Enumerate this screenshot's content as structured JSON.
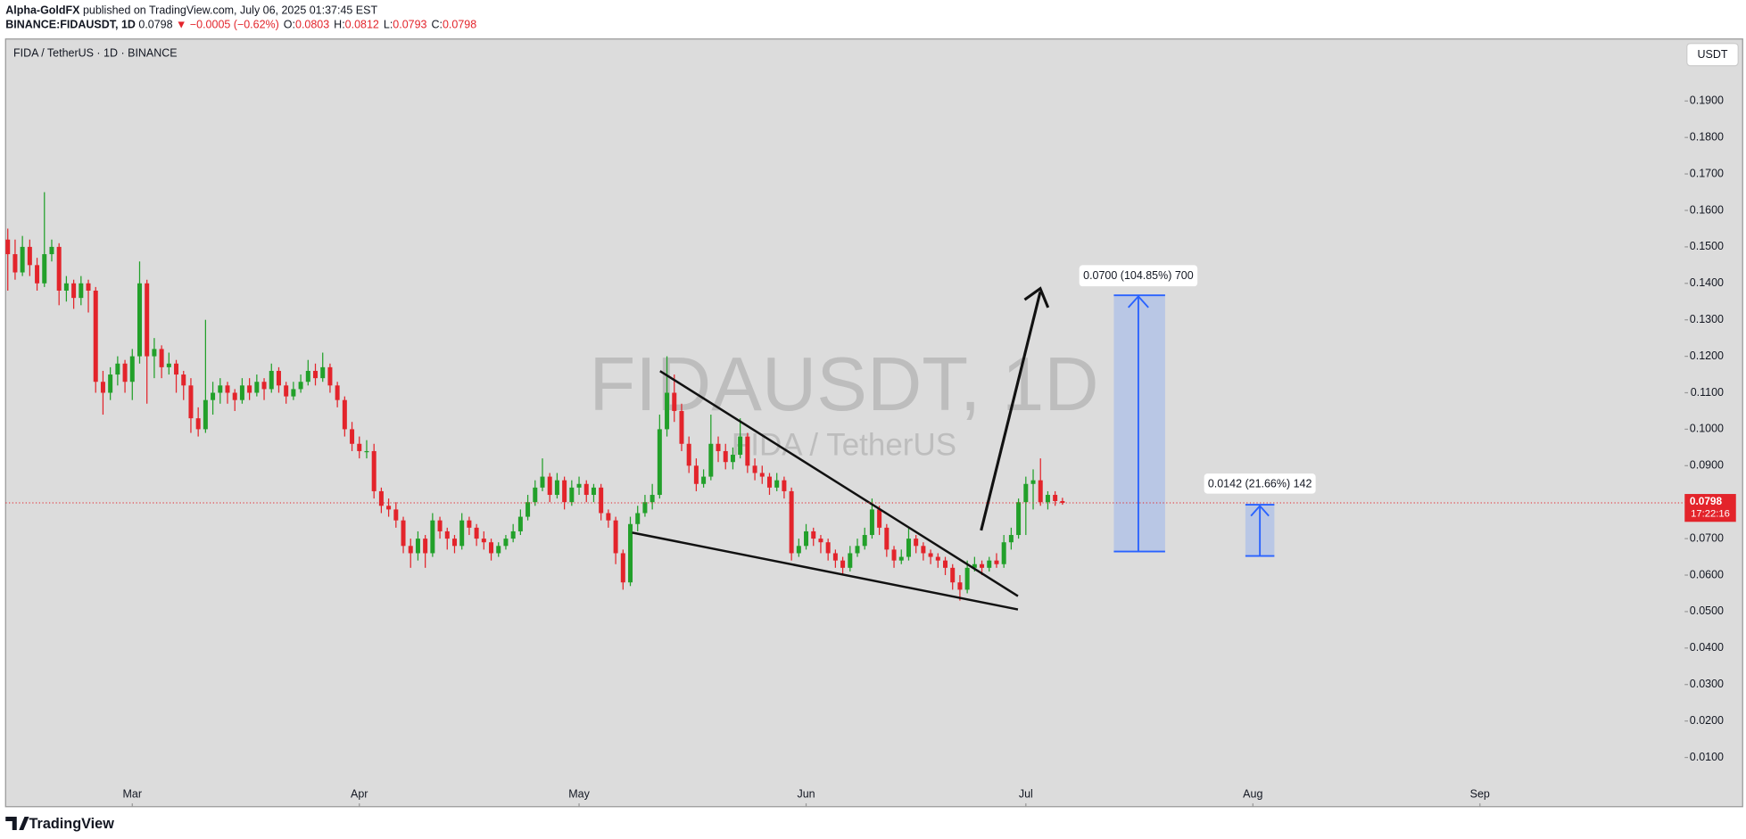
{
  "header": {
    "publisher": "Alpha-GoldFX",
    "published": "published on TradingView.com, July 06, 2025 01:37:45 EST",
    "symbol": "BINANCE:FIDAUSDT, 1D",
    "price": "0.0798",
    "change": "▼ −0.0005 (−0.62%)",
    "ohlc": [
      {
        "key": "O:",
        "text": "0.0803"
      },
      {
        "key": "H:",
        "text": "0.0812"
      },
      {
        "key": "L:",
        "text": "0.0793"
      },
      {
        "key": "C:",
        "text": "0.0798"
      }
    ]
  },
  "footer": {
    "logo": "TradingView"
  },
  "chart_data": {
    "type": "candlestick",
    "title": "FIDA / TetherUS · 1D · BINANCE",
    "currency": "USDT",
    "watermark": "FIDAUSDT, 1D",
    "watermark_subtitle": "FIDA / TetherUS",
    "up_color": "#22a02a",
    "down_color": "#e3242b",
    "last_price": 0.0798,
    "countdown": "17:22:16",
    "annotations": [
      "0.0700 (104.85%) 700",
      "0.0142 (21.66%) 142"
    ],
    "xlim": [
      -0.3,
      228.8
    ],
    "xticks": [
      {
        "value": 17,
        "label": "Mar"
      },
      {
        "value": 48,
        "label": "Apr"
      },
      {
        "value": 78,
        "label": "May"
      },
      {
        "value": 109,
        "label": "Jun"
      },
      {
        "value": 139,
        "label": "Jul"
      },
      {
        "value": 170,
        "label": "Aug"
      },
      {
        "value": 201,
        "label": "Sep"
      }
    ],
    "ylim": [
      -0.0035,
      0.207
    ],
    "yticks": [
      {
        "value": 0.01,
        "label": "0.0100"
      },
      {
        "value": 0.02,
        "label": "0.0200"
      },
      {
        "value": 0.03,
        "label": "0.0300"
      },
      {
        "value": 0.04,
        "label": "0.0400"
      },
      {
        "value": 0.05,
        "label": "0.0500"
      },
      {
        "value": 0.06,
        "label": "0.0600"
      },
      {
        "value": 0.07,
        "label": "0.0700"
      },
      {
        "value": 0.08,
        "label": "0.0800"
      },
      {
        "value": 0.09,
        "label": "0.0900"
      },
      {
        "value": 0.1,
        "label": "0.1000"
      },
      {
        "value": 0.11,
        "label": "0.1100"
      },
      {
        "value": 0.12,
        "label": "0.1200"
      },
      {
        "value": 0.13,
        "label": "0.1300"
      },
      {
        "value": 0.14,
        "label": "0.1400"
      },
      {
        "value": 0.15,
        "label": "0.1500"
      },
      {
        "value": 0.16,
        "label": "0.1600"
      },
      {
        "value": 0.17,
        "label": "0.1700"
      },
      {
        "value": 0.18,
        "label": "0.1800"
      },
      {
        "value": 0.19,
        "label": "0.1900"
      }
    ],
    "candles": [
      [
        0.152,
        0.155,
        0.138,
        0.148
      ],
      [
        0.148,
        0.152,
        0.141,
        0.143
      ],
      [
        0.143,
        0.153,
        0.142,
        0.15
      ],
      [
        0.15,
        0.152,
        0.142,
        0.145
      ],
      [
        0.145,
        0.147,
        0.138,
        0.14
      ],
      [
        0.14,
        0.165,
        0.139,
        0.148
      ],
      [
        0.148,
        0.152,
        0.146,
        0.15
      ],
      [
        0.15,
        0.151,
        0.134,
        0.138
      ],
      [
        0.138,
        0.142,
        0.135,
        0.14
      ],
      [
        0.14,
        0.141,
        0.133,
        0.136
      ],
      [
        0.136,
        0.142,
        0.134,
        0.14
      ],
      [
        0.14,
        0.141,
        0.132,
        0.138
      ],
      [
        0.138,
        0.139,
        0.11,
        0.113
      ],
      [
        0.113,
        0.116,
        0.104,
        0.11
      ],
      [
        0.11,
        0.117,
        0.108,
        0.115
      ],
      [
        0.115,
        0.12,
        0.112,
        0.118
      ],
      [
        0.118,
        0.119,
        0.11,
        0.113
      ],
      [
        0.113,
        0.122,
        0.108,
        0.12
      ],
      [
        0.12,
        0.146,
        0.118,
        0.14
      ],
      [
        0.14,
        0.141,
        0.107,
        0.12
      ],
      [
        0.12,
        0.125,
        0.114,
        0.122
      ],
      [
        0.122,
        0.123,
        0.114,
        0.117
      ],
      [
        0.117,
        0.121,
        0.115,
        0.118
      ],
      [
        0.118,
        0.119,
        0.11,
        0.115
      ],
      [
        0.115,
        0.116,
        0.108,
        0.112
      ],
      [
        0.112,
        0.114,
        0.099,
        0.103
      ],
      [
        0.103,
        0.106,
        0.098,
        0.1
      ],
      [
        0.1,
        0.13,
        0.099,
        0.108
      ],
      [
        0.108,
        0.113,
        0.104,
        0.11
      ],
      [
        0.11,
        0.114,
        0.107,
        0.112
      ],
      [
        0.112,
        0.113,
        0.107,
        0.11
      ],
      [
        0.11,
        0.111,
        0.105,
        0.108
      ],
      [
        0.108,
        0.114,
        0.107,
        0.112
      ],
      [
        0.112,
        0.114,
        0.108,
        0.11
      ],
      [
        0.11,
        0.115,
        0.109,
        0.113
      ],
      [
        0.113,
        0.114,
        0.108,
        0.111
      ],
      [
        0.111,
        0.118,
        0.11,
        0.116
      ],
      [
        0.116,
        0.117,
        0.11,
        0.112
      ],
      [
        0.112,
        0.113,
        0.107,
        0.109
      ],
      [
        0.109,
        0.113,
        0.108,
        0.111
      ],
      [
        0.111,
        0.115,
        0.11,
        0.113
      ],
      [
        0.113,
        0.119,
        0.112,
        0.116
      ],
      [
        0.116,
        0.118,
        0.112,
        0.114
      ],
      [
        0.114,
        0.121,
        0.113,
        0.117
      ],
      [
        0.117,
        0.118,
        0.11,
        0.112
      ],
      [
        0.112,
        0.113,
        0.106,
        0.108
      ],
      [
        0.108,
        0.109,
        0.098,
        0.1
      ],
      [
        0.1,
        0.102,
        0.094,
        0.096
      ],
      [
        0.096,
        0.098,
        0.092,
        0.094
      ],
      [
        0.094,
        0.097,
        0.092,
        0.094
      ],
      [
        0.094,
        0.096,
        0.081,
        0.083
      ],
      [
        0.083,
        0.084,
        0.077,
        0.079
      ],
      [
        0.079,
        0.081,
        0.076,
        0.078
      ],
      [
        0.078,
        0.08,
        0.073,
        0.075
      ],
      [
        0.075,
        0.076,
        0.066,
        0.068
      ],
      [
        0.068,
        0.07,
        0.062,
        0.066
      ],
      [
        0.066,
        0.072,
        0.064,
        0.07
      ],
      [
        0.07,
        0.071,
        0.062,
        0.066
      ],
      [
        0.066,
        0.077,
        0.065,
        0.075
      ],
      [
        0.075,
        0.076,
        0.07,
        0.072
      ],
      [
        0.072,
        0.073,
        0.067,
        0.07
      ],
      [
        0.07,
        0.071,
        0.066,
        0.068
      ],
      [
        0.068,
        0.077,
        0.067,
        0.075
      ],
      [
        0.075,
        0.076,
        0.071,
        0.073
      ],
      [
        0.073,
        0.074,
        0.068,
        0.07
      ],
      [
        0.07,
        0.072,
        0.067,
        0.069
      ],
      [
        0.069,
        0.07,
        0.064,
        0.066
      ],
      [
        0.066,
        0.069,
        0.065,
        0.068
      ],
      [
        0.068,
        0.071,
        0.067,
        0.07
      ],
      [
        0.07,
        0.074,
        0.069,
        0.072
      ],
      [
        0.072,
        0.078,
        0.071,
        0.076
      ],
      [
        0.076,
        0.082,
        0.075,
        0.08
      ],
      [
        0.08,
        0.086,
        0.079,
        0.084
      ],
      [
        0.084,
        0.092,
        0.083,
        0.087
      ],
      [
        0.087,
        0.088,
        0.08,
        0.082
      ],
      [
        0.082,
        0.088,
        0.081,
        0.086
      ],
      [
        0.086,
        0.087,
        0.078,
        0.08
      ],
      [
        0.08,
        0.086,
        0.079,
        0.084
      ],
      [
        0.084,
        0.087,
        0.082,
        0.085
      ],
      [
        0.085,
        0.086,
        0.08,
        0.082
      ],
      [
        0.082,
        0.085,
        0.08,
        0.084
      ],
      [
        0.084,
        0.085,
        0.075,
        0.077
      ],
      [
        0.077,
        0.078,
        0.073,
        0.075
      ],
      [
        0.075,
        0.076,
        0.063,
        0.066
      ],
      [
        0.066,
        0.067,
        0.056,
        0.058
      ],
      [
        0.058,
        0.076,
        0.057,
        0.074
      ],
      [
        0.074,
        0.079,
        0.072,
        0.077
      ],
      [
        0.077,
        0.082,
        0.076,
        0.08
      ],
      [
        0.08,
        0.085,
        0.078,
        0.082
      ],
      [
        0.082,
        0.104,
        0.081,
        0.1
      ],
      [
        0.1,
        0.12,
        0.098,
        0.11
      ],
      [
        0.11,
        0.115,
        0.102,
        0.105
      ],
      [
        0.105,
        0.107,
        0.094,
        0.096
      ],
      [
        0.096,
        0.098,
        0.088,
        0.09
      ],
      [
        0.09,
        0.092,
        0.083,
        0.085
      ],
      [
        0.085,
        0.089,
        0.084,
        0.087
      ],
      [
        0.087,
        0.104,
        0.086,
        0.096
      ],
      [
        0.096,
        0.098,
        0.091,
        0.094
      ],
      [
        0.094,
        0.096,
        0.089,
        0.091
      ],
      [
        0.091,
        0.095,
        0.089,
        0.093
      ],
      [
        0.093,
        0.103,
        0.092,
        0.098
      ],
      [
        0.098,
        0.099,
        0.088,
        0.09
      ],
      [
        0.09,
        0.092,
        0.086,
        0.088
      ],
      [
        0.088,
        0.09,
        0.085,
        0.087
      ],
      [
        0.087,
        0.088,
        0.082,
        0.084
      ],
      [
        0.084,
        0.088,
        0.083,
        0.086
      ],
      [
        0.086,
        0.087,
        0.081,
        0.083
      ],
      [
        0.083,
        0.084,
        0.064,
        0.066
      ],
      [
        0.066,
        0.07,
        0.065,
        0.068
      ],
      [
        0.068,
        0.074,
        0.067,
        0.072
      ],
      [
        0.072,
        0.073,
        0.068,
        0.07
      ],
      [
        0.07,
        0.071,
        0.066,
        0.069
      ],
      [
        0.069,
        0.07,
        0.064,
        0.066
      ],
      [
        0.066,
        0.067,
        0.062,
        0.064
      ],
      [
        0.064,
        0.065,
        0.06,
        0.062
      ],
      [
        0.062,
        0.068,
        0.061,
        0.066
      ],
      [
        0.066,
        0.07,
        0.065,
        0.068
      ],
      [
        0.068,
        0.073,
        0.067,
        0.071
      ],
      [
        0.071,
        0.081,
        0.07,
        0.078
      ],
      [
        0.078,
        0.079,
        0.071,
        0.073
      ],
      [
        0.073,
        0.074,
        0.065,
        0.067
      ],
      [
        0.067,
        0.068,
        0.062,
        0.064
      ],
      [
        0.064,
        0.067,
        0.063,
        0.065
      ],
      [
        0.065,
        0.073,
        0.064,
        0.07
      ],
      [
        0.07,
        0.071,
        0.066,
        0.068
      ],
      [
        0.068,
        0.069,
        0.064,
        0.066
      ],
      [
        0.066,
        0.067,
        0.063,
        0.065
      ],
      [
        0.065,
        0.066,
        0.062,
        0.064
      ],
      [
        0.064,
        0.065,
        0.06,
        0.062
      ],
      [
        0.062,
        0.063,
        0.056,
        0.058
      ],
      [
        0.058,
        0.06,
        0.053,
        0.056
      ],
      [
        0.056,
        0.064,
        0.055,
        0.062
      ],
      [
        0.062,
        0.065,
        0.061,
        0.063
      ],
      [
        0.063,
        0.064,
        0.06,
        0.062
      ],
      [
        0.062,
        0.065,
        0.061,
        0.064
      ],
      [
        0.064,
        0.066,
        0.062,
        0.063
      ],
      [
        0.063,
        0.071,
        0.062,
        0.069
      ],
      [
        0.069,
        0.073,
        0.067,
        0.071
      ],
      [
        0.071,
        0.081,
        0.07,
        0.08
      ],
      [
        0.08,
        0.087,
        0.071,
        0.085
      ],
      [
        0.085,
        0.089,
        0.078,
        0.086
      ],
      [
        0.086,
        0.092,
        0.079,
        0.08
      ],
      [
        0.08,
        0.083,
        0.078,
        0.082
      ],
      [
        0.082,
        0.083,
        0.079,
        0.0803
      ],
      [
        0.0803,
        0.0812,
        0.0793,
        0.0798
      ]
    ]
  }
}
